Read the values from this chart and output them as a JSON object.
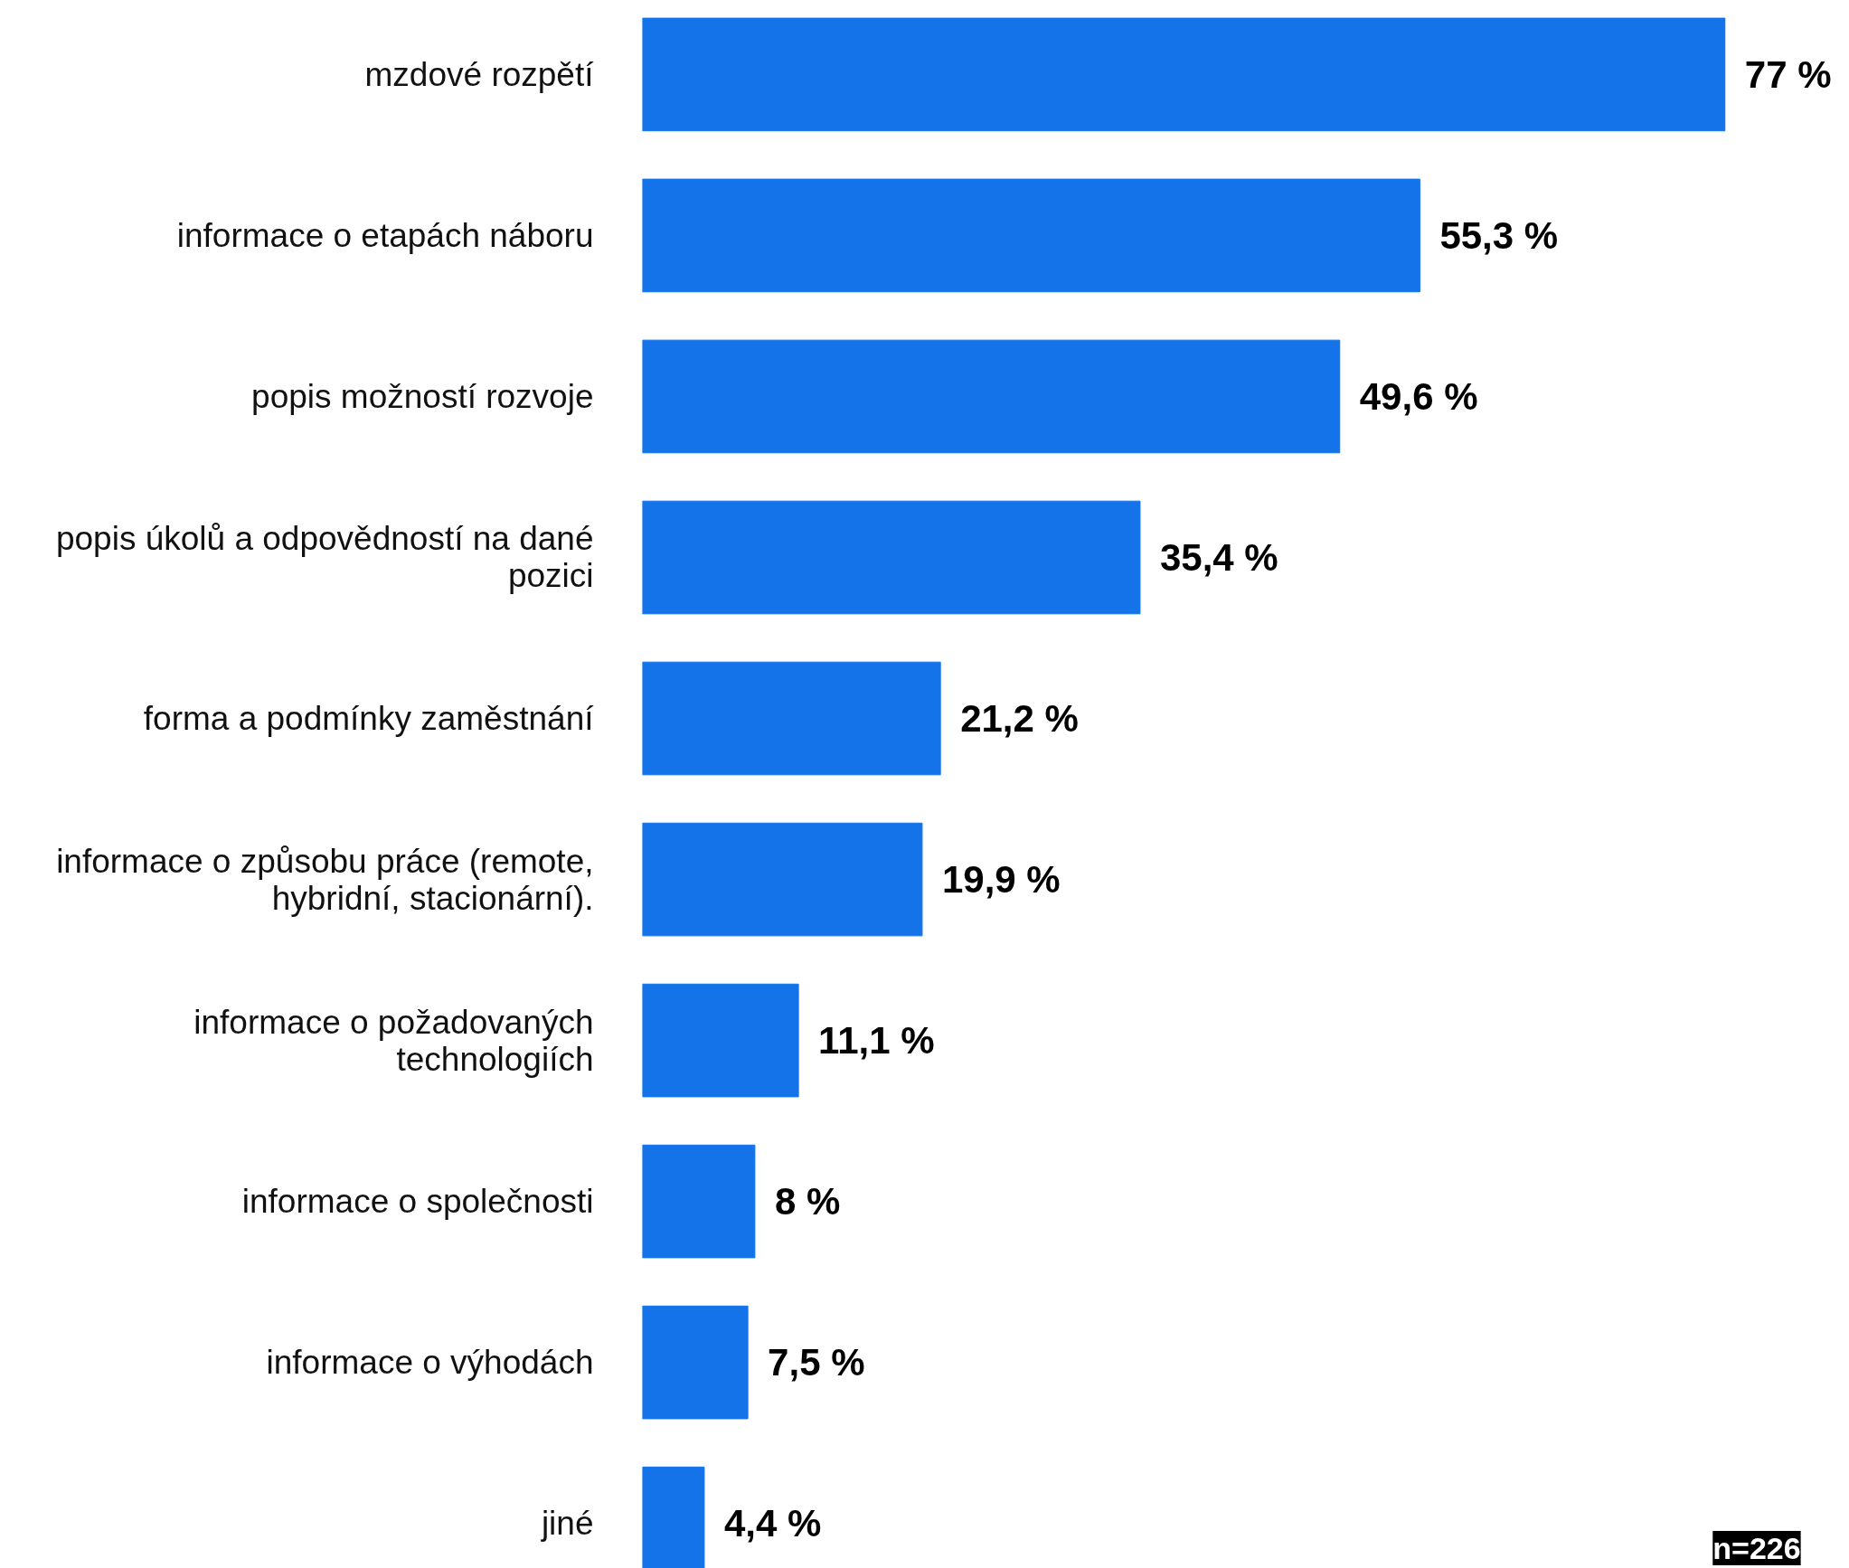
{
  "chart_data": {
    "type": "bar",
    "orientation": "horizontal",
    "categories": [
      "mzdové rozpětí",
      "informace o etapách náboru",
      "popis možností rozvoje",
      "popis úkolů a odpovědností na dané pozici",
      "forma a podmínky zaměstnání",
      "informace o způsobu práce (remote, hybridní, stacionární).",
      "informace o požadovaných technologiích",
      "informace o společnosti",
      "informace o výhodách",
      "jiné"
    ],
    "values": [
      77,
      55.3,
      49.6,
      35.4,
      21.2,
      19.9,
      11.1,
      8,
      7.5,
      4.4
    ],
    "value_labels": [
      "77 %",
      "55,3 %",
      "49,6 %",
      "35,4 %",
      "21,2 %",
      "19,9 %",
      "11,1 %",
      "8 %",
      "7,5 %",
      "4,4 %"
    ],
    "color": "#1573ea",
    "annotations": [
      "n=226"
    ],
    "grid": false
  }
}
